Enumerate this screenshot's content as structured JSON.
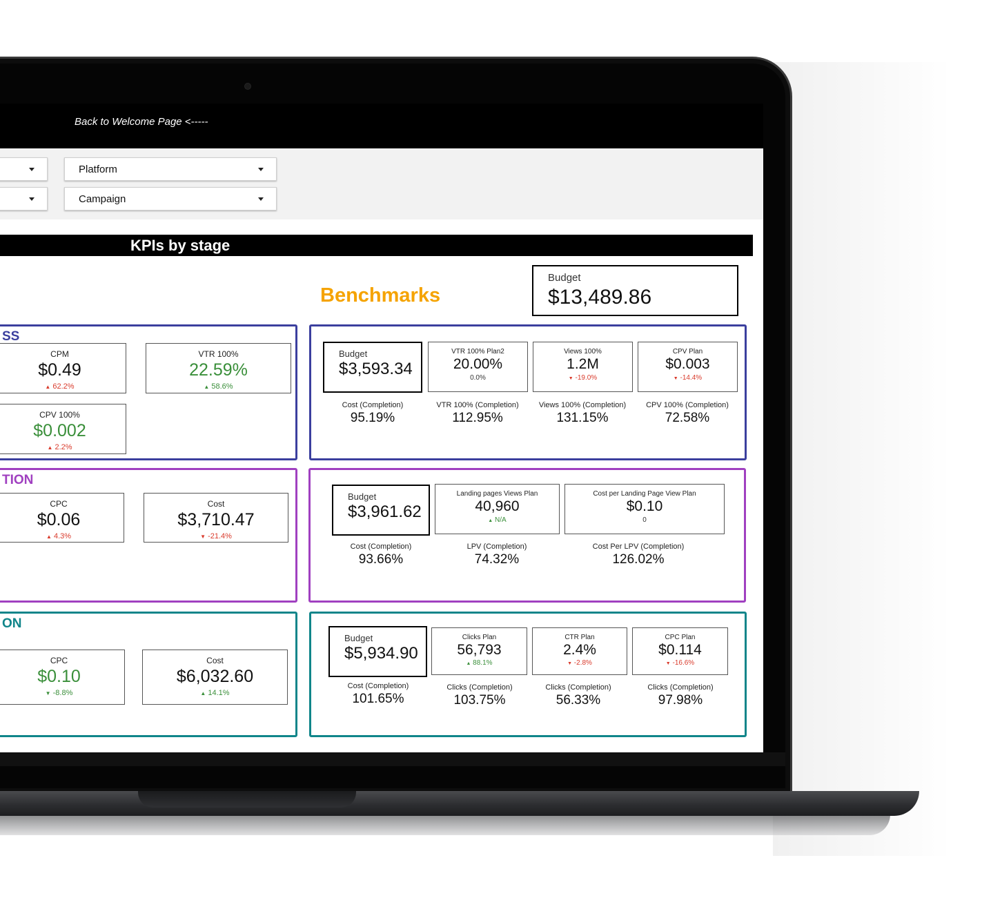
{
  "header": {
    "back_link": "Back to Welcome Page <-----"
  },
  "filters": {
    "row1": [
      {
        "label": ""
      },
      {
        "label": "Platform"
      }
    ],
    "row2": [
      {
        "label": ""
      },
      {
        "label": "Campaign"
      }
    ]
  },
  "kpi_title": "KPIs by stage",
  "benchmarks_title": "Benchmarks",
  "total_budget": {
    "label": "Budget",
    "value": "$13,489.86"
  },
  "colors": {
    "awareness": "#3b3f9e",
    "consideration": "#a040c0",
    "conversion": "#10858a",
    "benchmarks": "#f5a300"
  },
  "awareness": {
    "label": "SS",
    "cards": [
      {
        "label": "CPM",
        "value": "$0.49",
        "delta": "62.2%",
        "arrow": "▲"
      },
      {
        "label": "VTR 100%",
        "value": "22.59%",
        "delta": "58.6%",
        "arrow": "▲"
      },
      {
        "label": "CPV 100%",
        "value": "$0.002",
        "delta": "2.2%",
        "arrow": "▲"
      }
    ],
    "bench": {
      "budget": {
        "label": "Budget",
        "value": "$3,593.34"
      },
      "cards": [
        {
          "label": "VTR 100% Plan2",
          "value": "20.00%",
          "delta": "0.0%"
        },
        {
          "label": "Views 100%",
          "value": "1.2M",
          "delta": "-19.0%",
          "arrow": "▼"
        },
        {
          "label": "CPV Plan",
          "value": "$0.003",
          "delta": "-14.4%",
          "arrow": "▼"
        }
      ],
      "completion": [
        {
          "label": "Cost (Completion)",
          "value": "95.19%"
        },
        {
          "label": "VTR 100% (Completion)",
          "value": "112.95%"
        },
        {
          "label": "Views 100% (Completion)",
          "value": "131.15%"
        },
        {
          "label": "CPV 100% (Completion)",
          "value": "72.58%"
        }
      ]
    }
  },
  "consideration": {
    "label": "TION",
    "cards": [
      {
        "label": "CPC",
        "value": "$0.06",
        "delta": "4.3%",
        "arrow": "▲"
      },
      {
        "label": "Cost",
        "value": "$3,710.47",
        "delta": "-21.4%",
        "arrow": "▼"
      }
    ],
    "bench": {
      "budget": {
        "label": "Budget",
        "value": "$3,961.62"
      },
      "cards": [
        {
          "label": "Landing pages Views Plan",
          "value": "40,960",
          "delta": "N/A",
          "arrow": "▲"
        },
        {
          "label": "Cost per Landing Page View Plan",
          "value": "$0.10",
          "delta": "0"
        }
      ],
      "completion": [
        {
          "label": "Cost (Completion)",
          "value": "93.66%"
        },
        {
          "label": "LPV (Completion)",
          "value": "74.32%"
        },
        {
          "label": "Cost Per LPV (Completion)",
          "value": "126.02%"
        }
      ]
    }
  },
  "conversion": {
    "label": "ON",
    "cards": [
      {
        "label": "CPC",
        "value": "$0.10",
        "delta": "-8.8%",
        "arrow": "▼"
      },
      {
        "label": "Cost",
        "value": "$6,032.60",
        "delta": "14.1%",
        "arrow": "▲"
      }
    ],
    "bench": {
      "budget": {
        "label": "Budget",
        "value": "$5,934.90"
      },
      "cards": [
        {
          "label": "Clicks Plan",
          "value": "56,793",
          "delta": "88.1%",
          "arrow": "▲"
        },
        {
          "label": "CTR Plan",
          "value": "2.4%",
          "delta": "-2.8%",
          "arrow": "▼"
        },
        {
          "label": "CPC Plan",
          "value": "$0.114",
          "delta": "-16.6%",
          "arrow": "▼"
        }
      ],
      "completion": [
        {
          "label": "Cost (Completion)",
          "value": "101.65%"
        },
        {
          "label": "Clicks (Completion)",
          "value": "103.75%"
        },
        {
          "label": "Clicks (Completion)",
          "value": "56.33%"
        },
        {
          "label": "Clicks (Completion)",
          "value": "97.98%"
        }
      ]
    }
  }
}
